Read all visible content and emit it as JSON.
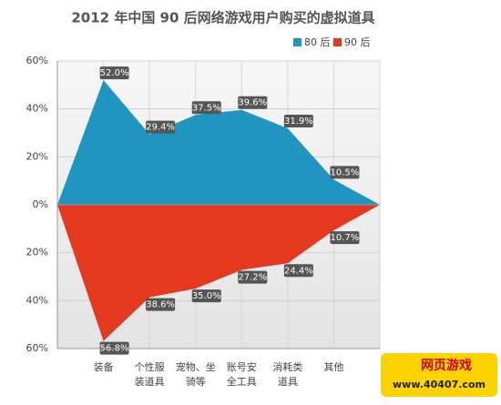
{
  "chart_data": {
    "type": "mirrored-area",
    "title": "2012 年中国 90 后网络游戏用户购买的虚拟道具",
    "categories": [
      null,
      [
        "装备"
      ],
      [
        "个性服",
        "装道具"
      ],
      [
        "宠物、坐",
        "骑等"
      ],
      [
        "账号安",
        "全工具"
      ],
      [
        "消耗类",
        "道具"
      ],
      [
        "其他"
      ],
      null
    ],
    "series": [
      {
        "name": "80 后",
        "color": "#1f95c0",
        "values": [
          0,
          52.0,
          29.4,
          37.5,
          39.6,
          31.9,
          10.5,
          0
        ],
        "value_labels": [
          null,
          "52.0%",
          "29.4%",
          "37.5%",
          "39.6%",
          "31.9%",
          "10.5%",
          null
        ]
      },
      {
        "name": "90 后",
        "color": "#e5391f",
        "values": [
          0,
          -56.8,
          -38.6,
          -35.0,
          -27.2,
          -24.4,
          -10.7,
          0
        ],
        "value_labels": [
          null,
          "56.8%",
          "38.6%",
          "35.0%",
          "27.2%",
          "24.4%",
          "10.7%",
          null
        ]
      }
    ],
    "ylim": [
      -60,
      60
    ],
    "yticks": [
      {
        "value": -60,
        "label": "60%"
      },
      {
        "value": -40,
        "label": "40%"
      },
      {
        "value": -20,
        "label": "20%"
      },
      {
        "value": 0,
        "label": "0%"
      },
      {
        "value": 20,
        "label": "20%"
      },
      {
        "value": 40,
        "label": "40%"
      },
      {
        "value": 60,
        "label": "60%"
      }
    ],
    "grid": true,
    "legend": "top-right"
  },
  "watermark": {
    "line1": "网页游戏",
    "line2": "www.40407.com"
  }
}
